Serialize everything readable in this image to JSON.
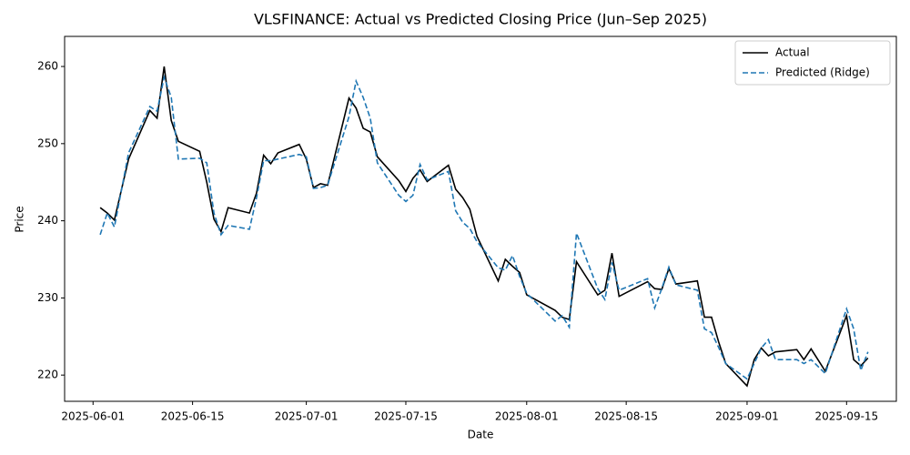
{
  "chart_data": {
    "type": "line",
    "title": "VLSFINANCE: Actual vs Predicted Closing Price (Jun–Sep 2025)",
    "x_label": "Date",
    "y_label": "Price",
    "x": [
      "2025-06-02",
      "2025-06-03",
      "2025-06-04",
      "2025-06-06",
      "2025-06-09",
      "2025-06-10",
      "2025-06-11",
      "2025-06-12",
      "2025-06-13",
      "2025-06-16",
      "2025-06-17",
      "2025-06-18",
      "2025-06-19",
      "2025-06-20",
      "2025-06-23",
      "2025-06-24",
      "2025-06-25",
      "2025-06-26",
      "2025-06-27",
      "2025-06-30",
      "2025-07-01",
      "2025-07-02",
      "2025-07-03",
      "2025-07-04",
      "2025-07-07",
      "2025-07-08",
      "2025-07-09",
      "2025-07-10",
      "2025-07-11",
      "2025-07-14",
      "2025-07-15",
      "2025-07-16",
      "2025-07-17",
      "2025-07-18",
      "2025-07-21",
      "2025-07-22",
      "2025-07-23",
      "2025-07-24",
      "2025-07-25",
      "2025-07-28",
      "2025-07-29",
      "2025-07-30",
      "2025-07-31",
      "2025-08-01",
      "2025-08-05",
      "2025-08-06",
      "2025-08-07",
      "2025-08-08",
      "2025-08-11",
      "2025-08-12",
      "2025-08-13",
      "2025-08-14",
      "2025-08-18",
      "2025-08-19",
      "2025-08-20",
      "2025-08-21",
      "2025-08-22",
      "2025-08-25",
      "2025-08-26",
      "2025-08-27",
      "2025-08-28",
      "2025-08-29",
      "2025-09-01",
      "2025-09-02",
      "2025-09-03",
      "2025-09-04",
      "2025-09-05",
      "2025-09-08",
      "2025-09-09",
      "2025-09-10",
      "2025-09-12",
      "2025-09-15",
      "2025-09-16",
      "2025-09-17",
      "2025-09-18"
    ],
    "series": [
      {
        "name": "Actual",
        "color": "#000000",
        "linestyle": "solid",
        "values": [
          241.7,
          241.0,
          240.1,
          248.0,
          254.3,
          253.3,
          260.0,
          253.0,
          250.3,
          249.0,
          245.0,
          240.2,
          238.6,
          241.7,
          241.0,
          243.6,
          248.5,
          247.4,
          248.8,
          249.9,
          248.0,
          244.3,
          244.8,
          244.6,
          255.9,
          254.6,
          252.0,
          251.5,
          248.3,
          245.2,
          243.8,
          245.5,
          246.6,
          245.1,
          247.2,
          244.1,
          243.0,
          241.5,
          238.0,
          232.2,
          235.0,
          234.1,
          233.3,
          230.4,
          228.4,
          227.5,
          227.2,
          234.7,
          230.4,
          231.0,
          235.8,
          230.2,
          232.1,
          231.2,
          231.1,
          233.8,
          231.8,
          232.2,
          227.5,
          227.5,
          224.3,
          221.5,
          218.6,
          222.0,
          223.5,
          222.5,
          223.0,
          223.3,
          222.0,
          223.4,
          220.5,
          227.7,
          222.0,
          221.2,
          222.2
        ]
      },
      {
        "name": "Predicted (Ridge)",
        "color": "#1f77b4",
        "linestyle": "dashed",
        "values": [
          238.2,
          241.0,
          239.2,
          248.8,
          254.8,
          254.2,
          258.6,
          256.0,
          248.0,
          248.1,
          247.5,
          241.0,
          238.2,
          239.4,
          238.9,
          243.0,
          247.8,
          247.8,
          248.0,
          248.6,
          248.3,
          244.2,
          244.3,
          244.6,
          253.5,
          258.1,
          256.0,
          253.3,
          247.5,
          243.3,
          242.5,
          243.3,
          247.3,
          245.3,
          246.4,
          241.3,
          239.8,
          239.0,
          237.3,
          233.9,
          233.6,
          235.5,
          232.8,
          230.6,
          227.0,
          227.7,
          226.2,
          238.4,
          231.2,
          229.8,
          234.6,
          231.0,
          232.5,
          228.7,
          231.2,
          234.0,
          231.7,
          231.0,
          226.0,
          225.5,
          223.6,
          221.5,
          219.5,
          221.5,
          223.5,
          224.6,
          222.0,
          222.0,
          221.5,
          222.0,
          220.2,
          228.6,
          226.0,
          220.6,
          223.0
        ]
      }
    ],
    "xlim": [
      "2025-05-28",
      "2025-09-22"
    ],
    "xticks": [
      "2025-06-01",
      "2025-06-15",
      "2025-07-01",
      "2025-07-15",
      "2025-08-01",
      "2025-08-15",
      "2025-09-01",
      "2025-09-15"
    ],
    "ylim": [
      216.6,
      263.9
    ],
    "yticks": [
      220,
      230,
      240,
      250,
      260
    ],
    "grid": false,
    "legend": "upper right"
  }
}
